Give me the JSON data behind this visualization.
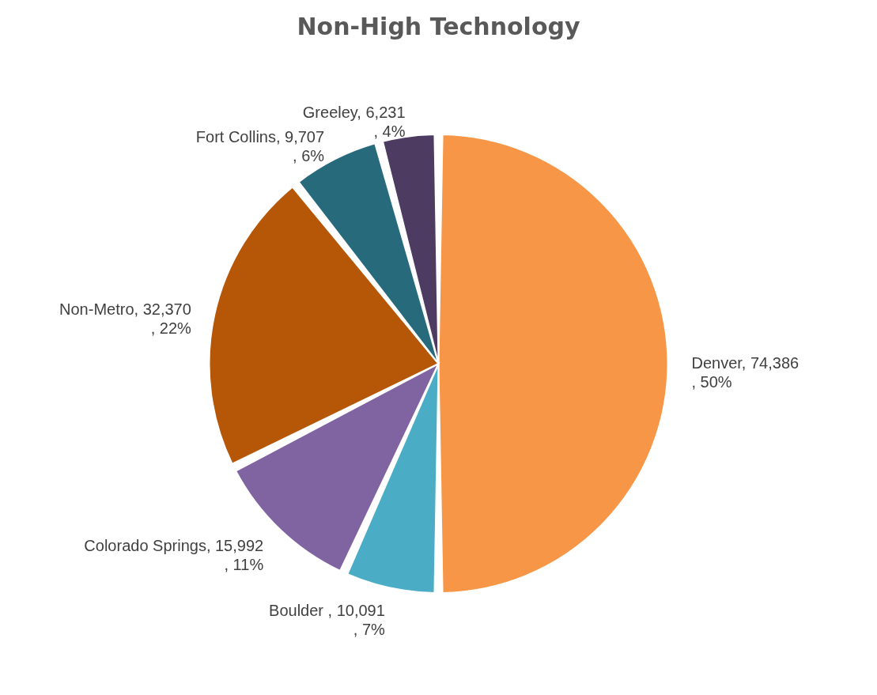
{
  "chart_data": {
    "type": "pie",
    "title": "Non-High Technology",
    "categories": [
      "Denver",
      "Boulder",
      "Colorado Springs",
      "Non-Metro",
      "Fort Collins",
      "Greeley"
    ],
    "values": [
      74386,
      10091,
      15992,
      32370,
      9707,
      6231
    ],
    "value_labels": [
      ", 74,386 , 50%",
      " , 10,091 , 7%",
      ", 15,992 , 11%",
      ", 32,370 , 22%",
      ", 9,707 , 6%",
      ", 6,231 , 4%"
    ],
    "colors": [
      "#f79646",
      "#4bacc6",
      "#8064a2",
      "#b65708",
      "#276a7c",
      "#4d3b62"
    ],
    "legend": false
  }
}
